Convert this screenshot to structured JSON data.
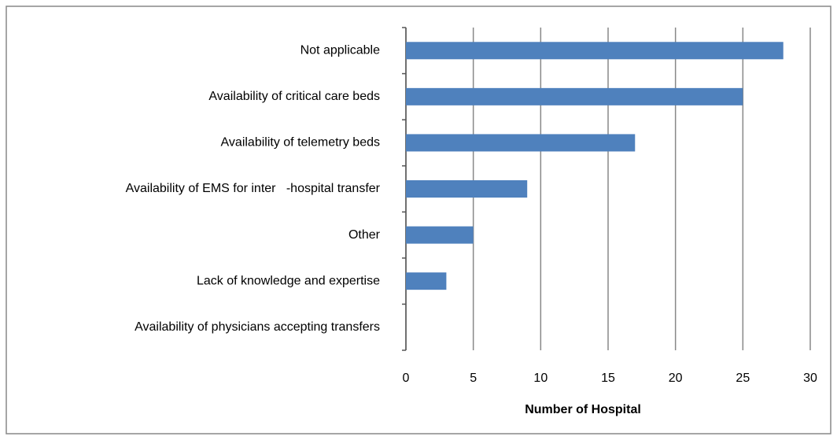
{
  "chart_data": {
    "type": "bar",
    "orientation": "horizontal",
    "categories": [
      "Not applicable",
      "Availability of critical care beds",
      "Availability of telemetry beds",
      "Availability of EMS for inter   -hospital transfer",
      "Other",
      "Lack of knowledge and expertise",
      "Availability of physicians accepting transfers"
    ],
    "values": [
      28,
      25,
      17,
      9,
      5,
      3,
      0
    ],
    "color": "#4f81bd",
    "xlabel": "Number of Hospital",
    "xlim": [
      0,
      30
    ],
    "xticks": [
      0,
      5,
      10,
      15,
      20,
      25,
      30
    ],
    "grid": true
  }
}
